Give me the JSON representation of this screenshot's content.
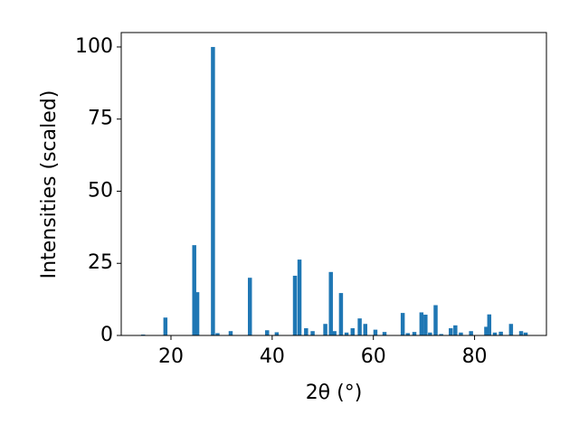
{
  "chart_data": {
    "type": "bar",
    "xlabel": "2θ (°)",
    "ylabel": "Intensities (scaled)",
    "x": [
      14.5,
      18.9,
      24.6,
      25.2,
      28.3,
      29.2,
      31.8,
      35.6,
      39.0,
      40.9,
      44.5,
      45.4,
      46.7,
      48.0,
      50.5,
      51.6,
      52.3,
      53.6,
      54.7,
      55.9,
      57.3,
      58.4,
      60.4,
      62.2,
      65.8,
      66.8,
      68.1,
      69.5,
      70.3,
      71.2,
      72.3,
      73.4,
      75.3,
      76.2,
      77.3,
      79.3,
      82.3,
      82.9,
      84.0,
      85.2,
      87.2,
      89.2,
      90.1
    ],
    "values": [
      0.3,
      6.2,
      31.3,
      15,
      100,
      0.8,
      1.5,
      20,
      1.8,
      1.1,
      20.7,
      26.3,
      2.5,
      1.5,
      4,
      22,
      1.5,
      14.7,
      1,
      2.5,
      5.9,
      4,
      2,
      1.2,
      7.8,
      0.8,
      1.2,
      8,
      7.2,
      1,
      10.5,
      0.5,
      2.5,
      3.5,
      1,
      1.5,
      3,
      7.3,
      1,
      1.3,
      4,
      1.5,
      1
    ],
    "color": "#1f77b4",
    "xlim": [
      10.17,
      94.2
    ],
    "xticks": [
      20,
      40,
      60,
      80
    ],
    "ylim": [
      0,
      105
    ],
    "yticks": [
      0,
      25,
      50,
      75,
      100
    ],
    "grid": false
  }
}
